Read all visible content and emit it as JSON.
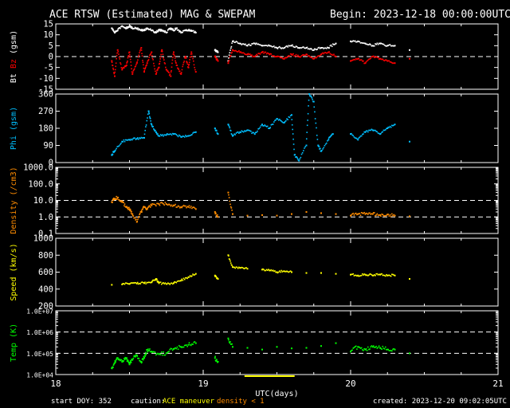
{
  "header": {
    "title": "ACE RTSW (Estimated) MAG & SWEPAM",
    "begin": "Begin: 2023-12-18 00:00:00UTC"
  },
  "footer": {
    "start_doy": "start DOY: 352",
    "caution": "caution:",
    "maneuver": "ACE maneuver",
    "density_note": "density < 1",
    "created": "created: 2023-12-20 09:02:05UTC"
  },
  "colors": {
    "bt": "#ffffff",
    "bz": "#ff0000",
    "phi": "#00bfff",
    "density": "#ff8c00",
    "speed": "#ffff00",
    "temp": "#00ff00",
    "maneuver": "#ffff00"
  },
  "chart_data": {
    "type": "scatter",
    "x_unit_label": "UTC(days)",
    "x_range": [
      18,
      21
    ],
    "x_ticks": [
      "18",
      "19",
      "20",
      "21"
    ],
    "panels": [
      {
        "id": "mag",
        "ylabel_parts": [
          {
            "text": "Bt",
            "color": "#ffffff"
          },
          {
            "text": "Bz",
            "color": "#ff0000"
          },
          {
            "text": "(gsm)",
            "color": "#ffffff"
          }
        ],
        "scale": "linear",
        "ylim": [
          -15,
          15
        ],
        "ticks": [
          "-15",
          "-10",
          "-5",
          "0",
          "5",
          "10",
          "15"
        ],
        "dashed": [
          0
        ],
        "series": [
          {
            "key": "Bt",
            "color": "#ffffff",
            "x": [
              18.38,
              18.4,
              18.42,
              18.45,
              18.48,
              18.5,
              18.52,
              18.55,
              18.58,
              18.6,
              18.62,
              18.65,
              18.68,
              18.7,
              18.72,
              18.75,
              18.78,
              18.8,
              18.82,
              18.85,
              18.88,
              18.9,
              18.92,
              18.95,
              19.08,
              19.1,
              19.17,
              19.2,
              19.25,
              19.3,
              19.35,
              19.4,
              19.45,
              19.5,
              19.55,
              19.6,
              19.65,
              19.7,
              19.75,
              19.8,
              19.85,
              19.9,
              20.0,
              20.05,
              20.1,
              20.15,
              20.2,
              20.25,
              20.3,
              20.4
            ],
            "y": [
              13,
              11,
              12,
              14,
              13,
              14,
              13,
              13,
              12,
              12,
              13,
              12,
              11,
              12,
              12,
              11,
              13,
              12,
              13,
              11,
              12,
              12,
              12,
              11,
              3,
              2,
              -2,
              7,
              6,
              5,
              6,
              5,
              5,
              4,
              4,
              5,
              4,
              4,
              3,
              4,
              4,
              6,
              7,
              7,
              6,
              5,
              6,
              5,
              5,
              3
            ]
          },
          {
            "key": "Bz",
            "color": "#ff0000",
            "x": [
              18.38,
              18.4,
              18.42,
              18.45,
              18.48,
              18.5,
              18.52,
              18.55,
              18.58,
              18.6,
              18.62,
              18.65,
              18.68,
              18.7,
              18.72,
              18.75,
              18.78,
              18.8,
              18.82,
              18.85,
              18.88,
              18.9,
              18.92,
              18.95,
              19.08,
              19.1,
              19.17,
              19.2,
              19.25,
              19.3,
              19.35,
              19.4,
              19.45,
              19.5,
              19.55,
              19.6,
              19.65,
              19.7,
              19.75,
              19.8,
              19.85,
              19.9,
              20.0,
              20.05,
              20.1,
              20.15,
              20.2,
              20.25,
              20.3,
              20.4
            ],
            "y": [
              -2,
              -9,
              3,
              -6,
              -4,
              2,
              -8,
              -3,
              4,
              -7,
              -3,
              2,
              -8,
              -5,
              3,
              -6,
              -9,
              2,
              -4,
              -8,
              0,
              -5,
              2,
              -7,
              0,
              -2,
              -3,
              3,
              2,
              1,
              0,
              2,
              1,
              0,
              -1,
              1,
              0,
              1,
              -1,
              1,
              2,
              0,
              -2,
              -1,
              -3,
              0,
              -1,
              -2,
              -3,
              -1
            ]
          }
        ]
      },
      {
        "id": "phi",
        "ylabel_parts": [
          {
            "text": "Phi (gsm)",
            "color": "#00bfff"
          }
        ],
        "scale": "linear",
        "ylim": [
          0,
          360
        ],
        "ticks": [
          "0",
          "90",
          "180",
          "270",
          "360"
        ],
        "dashed": [],
        "series": [
          {
            "key": "Phi",
            "color": "#00bfff",
            "x": [
              18.38,
              18.4,
              18.45,
              18.5,
              18.55,
              18.6,
              18.63,
              18.65,
              18.68,
              18.7,
              18.75,
              18.8,
              18.85,
              18.9,
              18.95,
              19.08,
              19.1,
              19.17,
              19.2,
              19.25,
              19.3,
              19.35,
              19.4,
              19.45,
              19.5,
              19.55,
              19.6,
              19.62,
              19.65,
              19.7,
              19.72,
              19.75,
              19.78,
              19.8,
              19.85,
              19.88,
              20.0,
              20.05,
              20.1,
              20.15,
              20.2,
              20.25,
              20.3,
              20.4
            ],
            "y": [
              40,
              60,
              110,
              120,
              125,
              130,
              270,
              200,
              160,
              140,
              145,
              150,
              135,
              140,
              160,
              180,
              150,
              200,
              140,
              160,
              170,
              150,
              200,
              180,
              230,
              210,
              250,
              40,
              10,
              90,
              360,
              320,
              90,
              60,
              120,
              150,
              150,
              120,
              160,
              170,
              150,
              180,
              200,
              110
            ]
          }
        ]
      },
      {
        "id": "density",
        "ylabel_parts": [
          {
            "text": "Density (/cm3)",
            "color": "#ff8c00"
          }
        ],
        "scale": "log",
        "ylim": [
          0.1,
          1000
        ],
        "ticks": [
          "0.1",
          "1.0",
          "10.0",
          "100.0",
          "1000.0"
        ],
        "dashed": [
          1,
          10
        ],
        "series": [
          {
            "key": "Density",
            "color": "#ff8c00",
            "x": [
              18.38,
              18.4,
              18.42,
              18.45,
              18.48,
              18.5,
              18.52,
              18.55,
              18.58,
              18.6,
              18.62,
              18.65,
              18.7,
              18.75,
              18.8,
              18.85,
              18.9,
              18.95,
              19.08,
              19.1,
              19.17,
              19.2,
              19.3,
              19.4,
              19.5,
              19.6,
              19.7,
              19.8,
              19.9,
              20.0,
              20.05,
              20.1,
              20.15,
              20.2,
              20.25,
              20.3,
              20.4
            ],
            "y": [
              8,
              12,
              15,
              8,
              4,
              3,
              1.5,
              0.5,
              2,
              4,
              3,
              5,
              6,
              6,
              5,
              4,
              4,
              3,
              2,
              1,
              30,
              1.5,
              1.2,
              1.3,
              1.2,
              1.5,
              2,
              1.7,
              1.5,
              1.2,
              1.5,
              1.5,
              1.5,
              1.3,
              1.4,
              1.2,
              1.1
            ]
          }
        ]
      },
      {
        "id": "speed",
        "ylabel_parts": [
          {
            "text": "Speed (km/s)",
            "color": "#ffff00"
          }
        ],
        "scale": "linear",
        "ylim": [
          200,
          1000
        ],
        "ticks": [
          "200",
          "400",
          "600",
          "800",
          "1000"
        ],
        "dashed": [],
        "series": [
          {
            "key": "Speed",
            "color": "#ffff00",
            "x": [
              18.38,
              18.45,
              18.5,
              18.55,
              18.6,
              18.65,
              18.68,
              18.7,
              18.75,
              18.8,
              18.85,
              18.9,
              18.95,
              19.08,
              19.1,
              19.17,
              19.2,
              19.25,
              19.3,
              19.4,
              19.45,
              19.5,
              19.55,
              19.6,
              19.7,
              19.8,
              19.9,
              20.0,
              20.05,
              20.1,
              20.15,
              20.2,
              20.25,
              20.3,
              20.4
            ],
            "y": [
              450,
              455,
              460,
              465,
              470,
              480,
              520,
              470,
              460,
              470,
              500,
              540,
              580,
              560,
              520,
              800,
              660,
              650,
              640,
              630,
              620,
              600,
              610,
              600,
              590,
              590,
              580,
              570,
              560,
              570,
              560,
              570,
              560,
              560,
              520
            ]
          }
        ]
      },
      {
        "id": "temp",
        "ylabel_parts": [
          {
            "text": "Temp (K)",
            "color": "#00ff00"
          }
        ],
        "scale": "log",
        "ylim": [
          10000,
          10000000
        ],
        "ticks": [
          "1.0E+04",
          "1.0E+05",
          "1.0E+06",
          "1.0E+07"
        ],
        "dashed": [
          100000,
          1000000
        ],
        "series": [
          {
            "key": "Temp",
            "color": "#00ff00",
            "x": [
              18.38,
              18.4,
              18.42,
              18.45,
              18.48,
              18.5,
              18.52,
              18.55,
              18.58,
              18.6,
              18.62,
              18.65,
              18.7,
              18.75,
              18.8,
              18.85,
              18.9,
              18.95,
              19.08,
              19.1,
              19.17,
              19.2,
              19.3,
              19.4,
              19.5,
              19.6,
              19.7,
              19.8,
              19.9,
              20.0,
              20.05,
              20.1,
              20.15,
              20.2,
              20.25,
              20.3,
              20.4
            ],
            "y": [
              20000,
              35000,
              60000,
              40000,
              60000,
              30000,
              50000,
              80000,
              40000,
              60000,
              140000,
              120000,
              90000,
              100000,
              160000,
              200000,
              250000,
              300000,
              60000,
              40000,
              500000,
              200000,
              180000,
              150000,
              200000,
              170000,
              180000,
              220000,
              300000,
              120000,
              200000,
              150000,
              200000,
              180000,
              150000,
              150000,
              100000
            ]
          }
        ]
      }
    ]
  }
}
